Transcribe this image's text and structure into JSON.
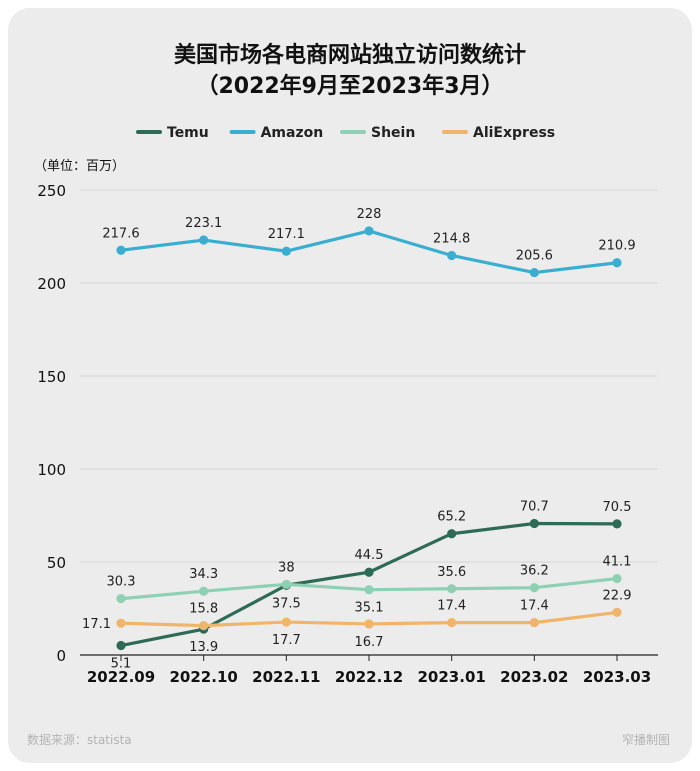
{
  "chart_data": {
    "type": "line",
    "title_line1": "美国市场各电商网站独立访问数统计",
    "title_line2": "（2022年9月至2023年3月）",
    "unit_label": "（单位：百万）",
    "categories": [
      "2022.09",
      "2022.10",
      "2022.11",
      "2022.12",
      "2023.01",
      "2023.02",
      "2023.03"
    ],
    "ylim": [
      0,
      250
    ],
    "yticks": [
      0,
      50,
      100,
      150,
      200,
      250
    ],
    "grid": true,
    "legend_position": "top",
    "series": [
      {
        "name": "Temu",
        "color": "#2e6b57",
        "values": [
          5.1,
          13.9,
          37.5,
          44.5,
          65.2,
          70.7,
          70.5
        ],
        "labels": [
          "5.1",
          "13.9",
          "37.5",
          "44.5",
          "65.2",
          "70.7",
          "70.5"
        ],
        "label_pos": [
          "below",
          "below",
          "below",
          "above",
          "above",
          "above",
          "above"
        ]
      },
      {
        "name": "Amazon",
        "color": "#3aaed0",
        "values": [
          217.6,
          223.1,
          217.1,
          228,
          214.8,
          205.6,
          210.9
        ],
        "labels": [
          "217.6",
          "223.1",
          "217.1",
          "228",
          "214.8",
          "205.6",
          "210.9"
        ],
        "label_pos": [
          "above",
          "above",
          "above",
          "above",
          "above",
          "above",
          "above"
        ]
      },
      {
        "name": "Shein",
        "color": "#8ed0b4",
        "values": [
          30.3,
          34.3,
          38,
          35.1,
          35.6,
          36.2,
          41.1
        ],
        "labels": [
          "30.3",
          "34.3",
          "38",
          "35.1",
          "35.6",
          "36.2",
          "41.1"
        ],
        "label_pos": [
          "above",
          "above",
          "above",
          "below",
          "above",
          "above",
          "above"
        ]
      },
      {
        "name": "AliExpress",
        "color": "#f0b56a",
        "values": [
          17.1,
          15.8,
          17.7,
          16.7,
          17.4,
          17.4,
          22.9
        ],
        "labels": [
          "17.1",
          "15.8",
          "17.7",
          "16.7",
          "17.4",
          "17.4",
          "22.9"
        ],
        "label_pos": [
          "left",
          "above",
          "below",
          "below",
          "above",
          "above",
          "above"
        ]
      }
    ]
  },
  "footer": {
    "source": "数据来源：statista",
    "credit": "窄播制图"
  }
}
